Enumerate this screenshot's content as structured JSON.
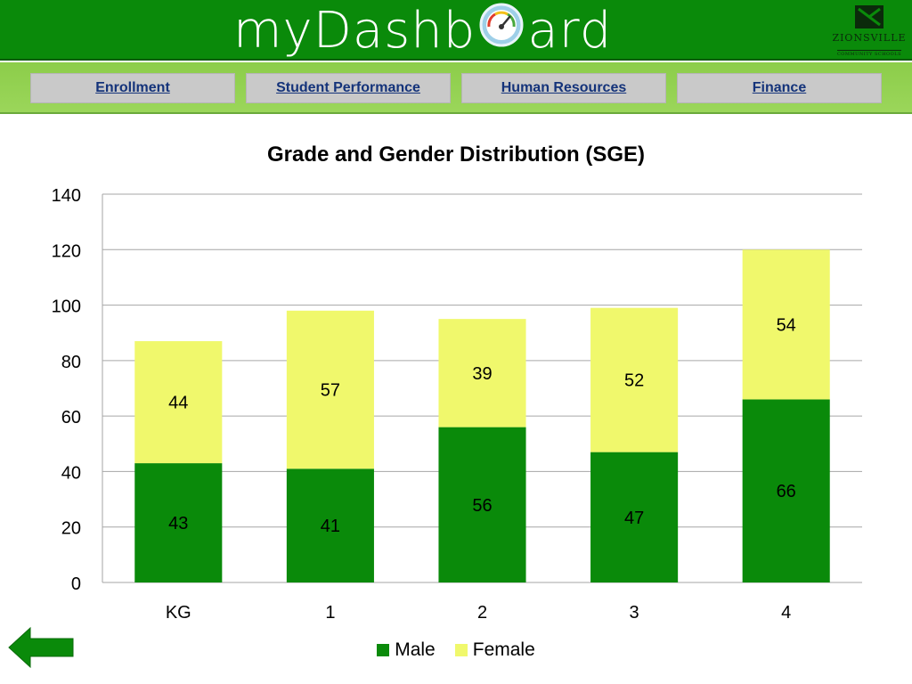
{
  "header": {
    "title_left": "myDashb",
    "title_right": "ard",
    "logo_text": "ZIONSVILLE",
    "logo_sub": "COMMUNITY SCHOOLS"
  },
  "nav": [
    {
      "label": "Enrollment"
    },
    {
      "label": "Student Performance"
    },
    {
      "label": "Human Resources"
    },
    {
      "label": "Finance"
    }
  ],
  "colors": {
    "male": "#0a8a0a",
    "female": "#f0f86c",
    "header": "#0a8a0a",
    "nav_link": "#14337a"
  },
  "chart_data": {
    "type": "bar",
    "stacked": true,
    "title": "Grade and Gender Distribution (SGE)",
    "categories": [
      "KG",
      "1",
      "2",
      "3",
      "4"
    ],
    "series": [
      {
        "name": "Male",
        "values": [
          43,
          41,
          56,
          47,
          66
        ]
      },
      {
        "name": "Female",
        "values": [
          44,
          57,
          39,
          52,
          54
        ]
      }
    ],
    "ylim": [
      0,
      140
    ],
    "yticks": [
      "0",
      "20",
      "40",
      "60",
      "80",
      "100",
      "120",
      "140"
    ],
    "grid": true,
    "legend_position": "bottom"
  },
  "icons": {
    "back": "back-arrow-icon",
    "gauge": "gauge-icon"
  }
}
